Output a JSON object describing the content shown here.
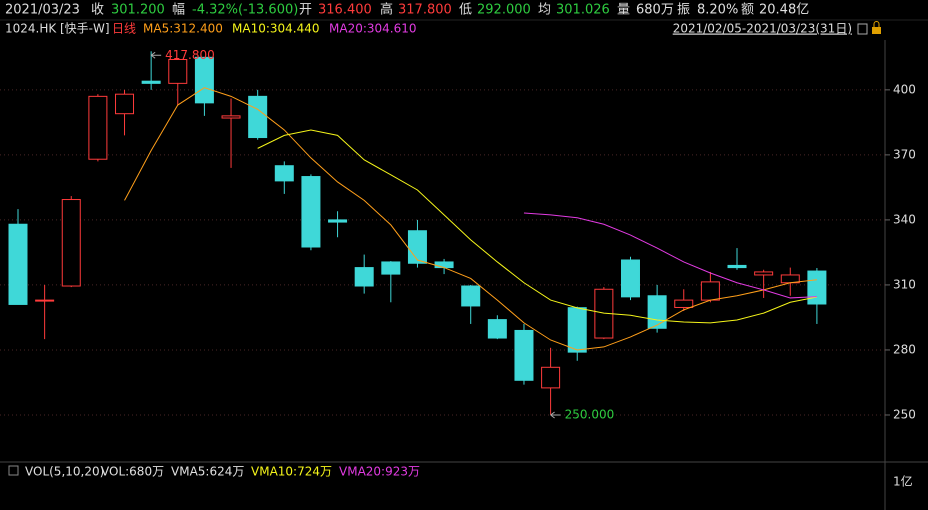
{
  "header": {
    "date": "2021/03/23",
    "fields": [
      {
        "label": "收",
        "value": "301.200",
        "color": "#2ecc40"
      },
      {
        "label": "幅",
        "value": "-4.32%(-13.600)",
        "color": "#2ecc40"
      },
      {
        "label": "开",
        "value": "316.400",
        "color": "#ff3b3b"
      },
      {
        "label": "高",
        "value": "317.800",
        "color": "#ff3b3b"
      },
      {
        "label": "低",
        "value": "292.000",
        "color": "#2ecc40"
      },
      {
        "label": "均",
        "value": "301.026",
        "color": "#2ecc40"
      },
      {
        "label": "量",
        "value": "680万",
        "color": "#e0e0e0"
      },
      {
        "label": "振",
        "value": "8.20%",
        "color": "#e0e0e0"
      },
      {
        "label": "额",
        "value": "20.48亿",
        "color": "#e0e0e0"
      }
    ]
  },
  "legend": {
    "symbol": "1024.HK",
    "name": "[快手-W]",
    "period": "日线",
    "ma": [
      "MA5:312.400",
      "MA10:304.440",
      "MA20:304.610"
    ],
    "range": "2021/02/05-2021/03/23(31日)"
  },
  "chart_data": {
    "type": "candlestick",
    "open": [
      338,
      303,
      309.5,
      368,
      389,
      404,
      403,
      415,
      387,
      397,
      365,
      360,
      340,
      318,
      320.6,
      335,
      320.6,
      309.5,
      294,
      289,
      262.5,
      299.5,
      285.5,
      321.5,
      305,
      299.6,
      303,
      319,
      314.6,
      311,
      316.4
    ],
    "high": [
      345,
      310,
      351,
      398,
      400,
      417.8,
      414,
      415,
      396,
      400,
      367,
      361,
      344,
      324,
      321,
      340,
      322,
      310,
      296,
      292,
      281,
      300,
      309,
      323,
      310,
      308,
      316,
      327,
      317,
      318,
      317.8
    ],
    "low": [
      301,
      285,
      309,
      367,
      379,
      400,
      393,
      388,
      364,
      377,
      352,
      326,
      332,
      306,
      302,
      318,
      315,
      292,
      285,
      264,
      250,
      275,
      285,
      303,
      288,
      298,
      302,
      317,
      304,
      305,
      292
    ],
    "close": [
      301,
      303,
      349.4,
      397,
      398,
      403,
      414,
      394,
      388,
      378,
      358,
      327.5,
      339,
      309.5,
      315,
      320,
      318,
      300.3,
      285.5,
      266,
      272,
      279,
      308,
      304.5,
      290,
      303,
      311.4,
      318,
      316,
      314.6,
      301.2
    ],
    "up_color": "#ff3b3b",
    "down_color": "#3fd8d8",
    "series": [
      {
        "name": "MA5",
        "color": "#ff9f1a",
        "values": [
          null,
          null,
          null,
          null,
          349,
          372,
          393,
          401,
          397,
          391,
          381.5,
          368.6,
          357.5,
          349,
          337.7,
          321.5,
          318,
          313,
          303,
          292.5,
          284.6,
          280,
          281.4,
          286,
          291.5,
          298.5,
          303,
          305,
          307.7,
          311,
          312.4
        ]
      },
      {
        "name": "MA10",
        "color": "#f5f51a",
        "values": [
          null,
          null,
          null,
          null,
          null,
          null,
          null,
          null,
          null,
          373,
          379,
          381.5,
          379,
          367.7,
          360.8,
          353.8,
          342.3,
          330.8,
          320.6,
          311,
          303,
          299.4,
          297,
          296,
          293.8,
          292.9,
          292.5,
          293.8,
          297,
          302,
          304.44
        ]
      },
      {
        "name": "MA20",
        "color": "#e23be2",
        "values": [
          null,
          null,
          null,
          null,
          null,
          null,
          null,
          null,
          null,
          null,
          null,
          null,
          null,
          null,
          null,
          null,
          null,
          null,
          null,
          343.2,
          342.3,
          341,
          338,
          333,
          327,
          320.6,
          315.5,
          311,
          307.7,
          304,
          304.61
        ]
      }
    ],
    "ylim": [
      229,
      423
    ],
    "yticks": [
      250,
      280,
      310,
      340,
      370,
      400
    ],
    "grid": true,
    "annotations": [
      {
        "text": "417.800",
        "value": 417.8,
        "index": 5,
        "color": "#ff3b3b"
      },
      {
        "text": "250.000",
        "value": 250,
        "index": 20,
        "color": "#2ecc40"
      }
    ]
  },
  "volume": {
    "labels": [
      {
        "text": "VOL(5,10,20)",
        "color": "#e0e0e0"
      },
      {
        "text": "VOL:680万",
        "color": "#e0e0e0"
      },
      {
        "text": "VMA5:624万",
        "color": "#e0e0e0"
      },
      {
        "text": "VMA10:724万",
        "color": "#f5f51a"
      },
      {
        "text": "VMA20:923万",
        "color": "#e23be2"
      }
    ],
    "tick": "1亿"
  }
}
